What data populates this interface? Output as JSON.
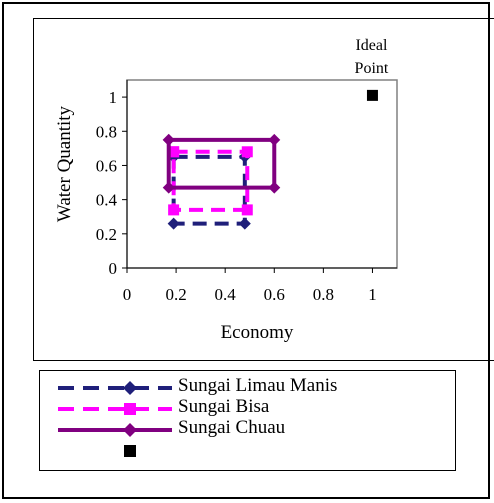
{
  "chart_data": {
    "type": "line",
    "xlabel": "Economy",
    "ylabel": "Water Quantity",
    "xlim": [
      0,
      1.1
    ],
    "ylim": [
      0,
      1.1
    ],
    "xticks": [
      "0",
      "0.2",
      "0.4",
      "0.6",
      "0.8",
      "1"
    ],
    "yticks": [
      "0",
      "0.2",
      "0.4",
      "0.6",
      "0.8",
      "1"
    ],
    "xtick_values": [
      0,
      0.2,
      0.4,
      0.6,
      0.8,
      1
    ],
    "ytick_values": [
      0,
      0.2,
      0.4,
      0.6,
      0.8,
      1
    ],
    "annotation": {
      "lines": [
        "Ideal",
        "Point"
      ]
    },
    "series": [
      {
        "name": "Sungai Limau Manis",
        "color": "#1f1f7a",
        "marker": "diamond",
        "dash": "dashed",
        "points": [
          [
            0.19,
            0.65
          ],
          [
            0.48,
            0.65
          ],
          [
            0.48,
            0.26
          ],
          [
            0.19,
            0.26
          ],
          [
            0.19,
            0.65
          ]
        ]
      },
      {
        "name": "Sungai Bisa",
        "color": "#ff00ff",
        "marker": "square",
        "dash": "dashed",
        "points": [
          [
            0.19,
            0.68
          ],
          [
            0.49,
            0.68
          ],
          [
            0.49,
            0.34
          ],
          [
            0.19,
            0.34
          ],
          [
            0.19,
            0.68
          ]
        ]
      },
      {
        "name": "Sungai Chuau",
        "color": "#800080",
        "marker": "diamond",
        "dash": "solid",
        "points": [
          [
            0.17,
            0.75
          ],
          [
            0.6,
            0.75
          ],
          [
            0.6,
            0.47
          ],
          [
            0.17,
            0.47
          ],
          [
            0.17,
            0.75
          ]
        ]
      },
      {
        "name": "",
        "color": "#000000",
        "marker": "square",
        "dash": "none",
        "points": [
          [
            1.0,
            1.01
          ]
        ]
      }
    ],
    "legend_position": "bottom"
  }
}
